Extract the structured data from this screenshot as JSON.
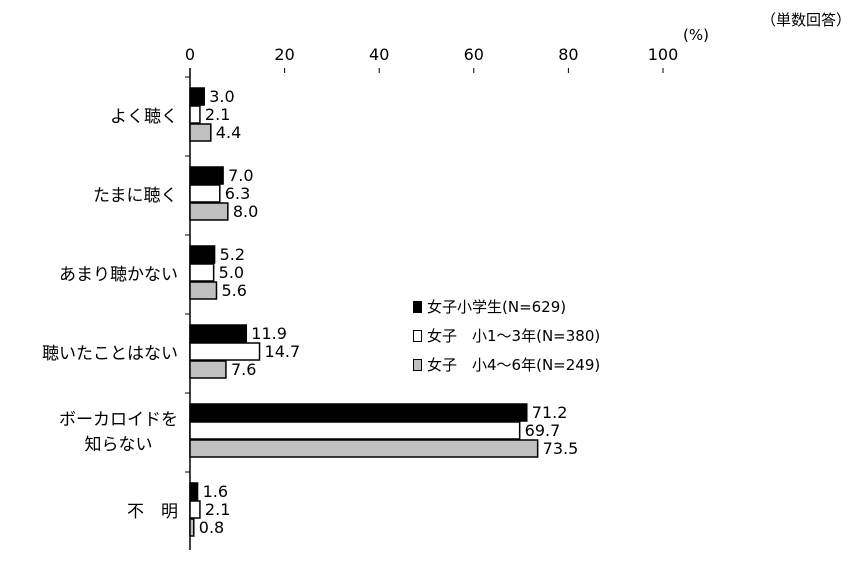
{
  "notes": {
    "response_type": "（単数回答）",
    "unit": "(%)"
  },
  "chart_data": {
    "type": "bar",
    "orientation": "horizontal",
    "categories": [
      "よく聴く",
      "たまに聴く",
      "あまり聴かない",
      "聴いたことはない",
      "ボーカロイドを\n知らない",
      "不　明"
    ],
    "category_lines": [
      [
        "よく聴く"
      ],
      [
        "たまに聴く"
      ],
      [
        "あまり聴かない"
      ],
      [
        "聴いたことはない"
      ],
      [
        "ボーカロイドを",
        "知らない"
      ],
      [
        "不　明"
      ]
    ],
    "series": [
      {
        "name": "女子小学生(N=629)",
        "values": [
          3.0,
          7.0,
          5.2,
          11.9,
          71.2,
          1.6
        ],
        "color": "#000000"
      },
      {
        "name": "女子　小1～3年(N=380)",
        "values": [
          2.1,
          6.3,
          5.0,
          14.7,
          69.7,
          2.1
        ],
        "color": "#ffffff"
      },
      {
        "name": "女子　小4～6年(N=249)",
        "values": [
          4.4,
          8.0,
          5.6,
          7.6,
          73.5,
          0.8
        ],
        "color": "#c0c0c0"
      }
    ],
    "xlim": [
      0,
      100
    ],
    "xticks": [
      0,
      20,
      40,
      60,
      80,
      100
    ],
    "grid": false,
    "legend_position": "right-center"
  }
}
